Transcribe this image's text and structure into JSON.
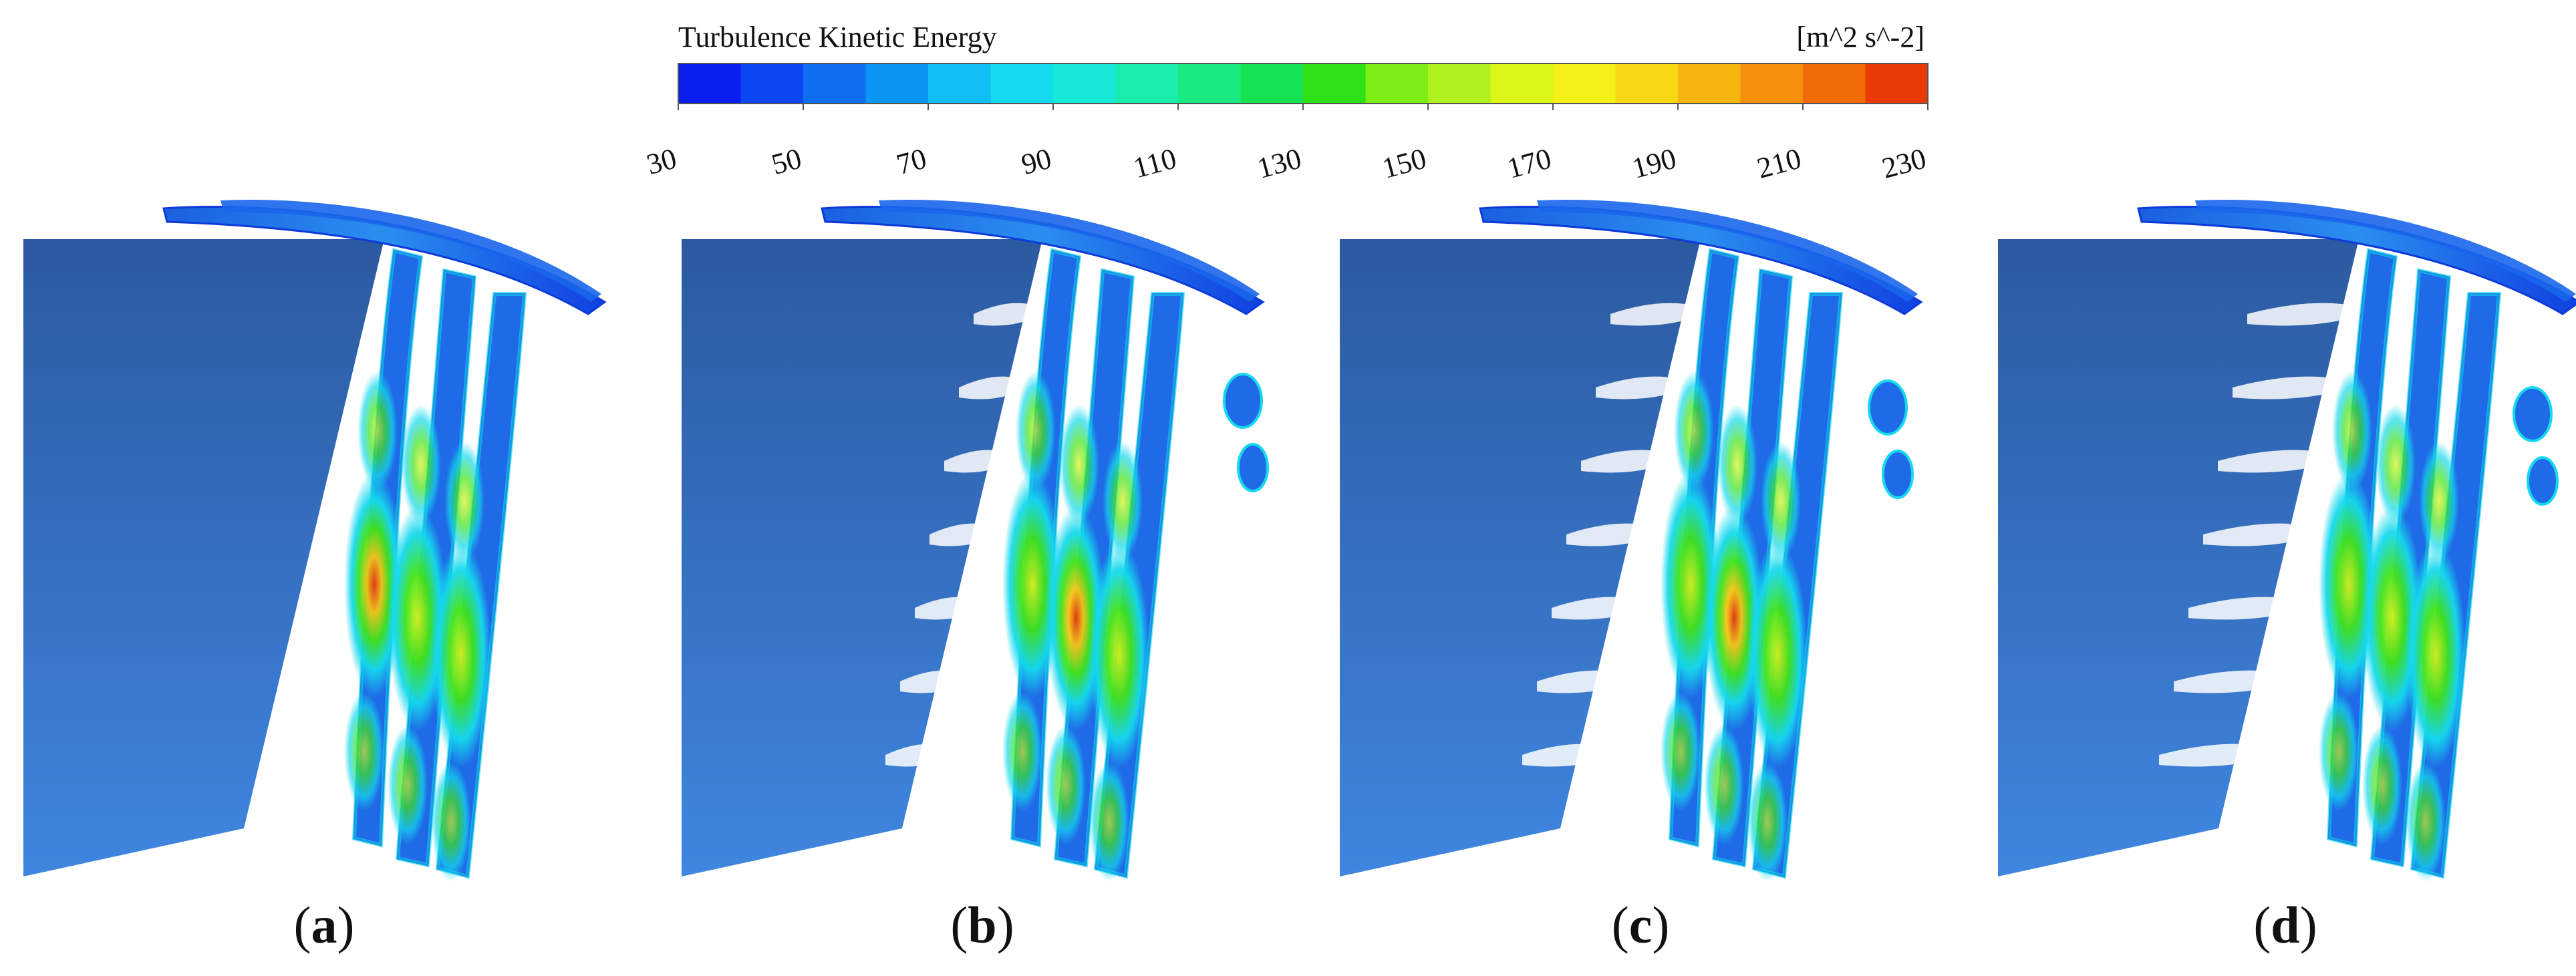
{
  "colorbar": {
    "title": "Turbulence Kinetic Energy",
    "unit": "[m^2 s^-2]",
    "min": 30,
    "max": 230,
    "ticks": [
      "30",
      "50",
      "70",
      "90",
      "110",
      "130",
      "150",
      "170",
      "190",
      "210",
      "230"
    ],
    "colors": [
      "#0a1ef0",
      "#0b46f2",
      "#0f6ff0",
      "#0b95f5",
      "#10bdf4",
      "#15d9ee",
      "#17e9d8",
      "#19ecac",
      "#1aeb80",
      "#16e353",
      "#2fe019",
      "#7ded16",
      "#b0f01c",
      "#dcf61a",
      "#f5f117",
      "#f8d714",
      "#f7b510",
      "#f6900c",
      "#f06a08",
      "#ea3a05"
    ]
  },
  "panels": [
    {
      "open": "(",
      "letter": "a",
      "close": ")"
    },
    {
      "open": "(",
      "letter": "b",
      "close": ")"
    },
    {
      "open": "(",
      "letter": "c",
      "close": ")"
    },
    {
      "open": "(",
      "letter": "d",
      "close": ")"
    }
  ],
  "colors": {
    "hub_dark": "#2c5ea6",
    "hub_light": "#3f82dc",
    "vane_base": "#1f6ae6",
    "vane_mid": "#15d9ee",
    "vane_green": "#3fe31a",
    "vane_yellow": "#e8f019",
    "vane_red": "#e93a06"
  }
}
